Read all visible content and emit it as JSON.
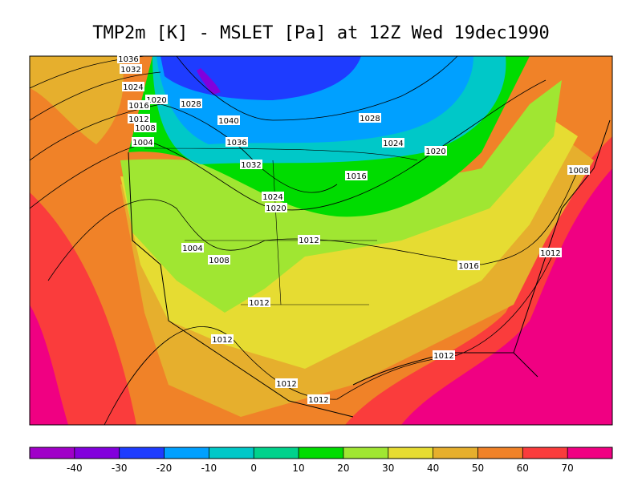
{
  "title": "TMP2m [K] - MSLET [Pa] at 12Z Wed 19dec1990",
  "map": {
    "contour_labels": [
      "1036",
      "1032",
      "1024",
      "1020",
      "1016",
      "1028",
      "1012",
      "1008",
      "1004",
      "1040",
      "1036",
      "1032",
      "1028",
      "1024",
      "1020",
      "1016",
      "1008",
      "1024",
      "1020",
      "1012",
      "1004",
      "1008",
      "1016",
      "1012",
      "1012",
      "1012",
      "1012",
      "1012",
      "1012"
    ]
  },
  "colorbar": {
    "lim": [
      -50,
      80
    ],
    "colors": [
      "#a000c8",
      "#8200dc",
      "#1e3cff",
      "#00a0ff",
      "#00c8c8",
      "#00d28c",
      "#00dc00",
      "#a0e632",
      "#e6dc32",
      "#e6af2d",
      "#f08228",
      "#fa3c3c",
      "#f00082"
    ],
    "ticks": [
      -40,
      -30,
      -20,
      -10,
      0,
      10,
      20,
      30,
      40,
      50,
      60,
      70
    ]
  }
}
